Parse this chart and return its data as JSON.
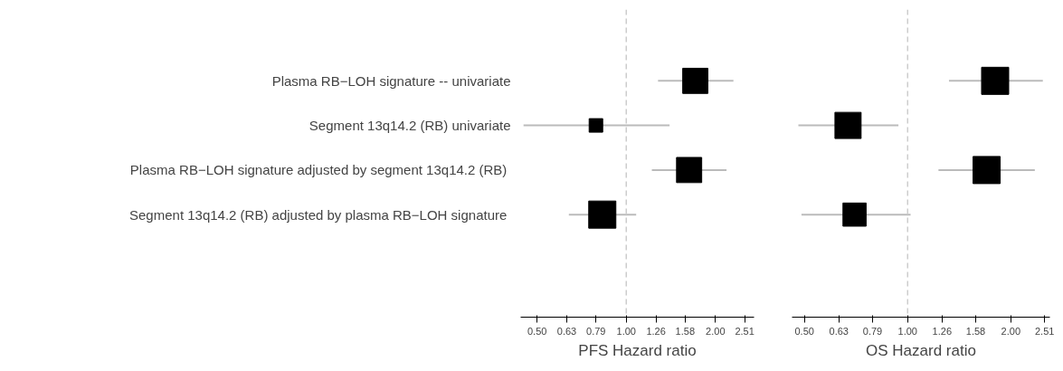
{
  "chart_data": [
    {
      "type": "scatter",
      "orientation": "horizontal",
      "categories": [
        "Plasma RB−LOH signature -- univariate",
        "Segment 13q14.2 (RB) univariate",
        "Plasma RB−LOH  signature adjusted by segment 13q14.2 (RB)",
        "Segment 13q14.2 (RB) adjusted by plasma RB−LOH  signature"
      ],
      "values": [
        1.71,
        0.79,
        1.63,
        0.83
      ],
      "errors": [
        [
          1.28,
          2.3
        ],
        [
          0.45,
          1.4
        ],
        [
          1.22,
          2.18
        ],
        [
          0.64,
          1.08
        ]
      ],
      "sizes": [
        0.86,
        0.25,
        0.86,
        1
      ],
      "color": "#000000",
      "marker": "square",
      "log": "x",
      "xlim": [
        0.44,
        2.7
      ],
      "xticks": [
        {
          "value": 0.5,
          "label": "0.50"
        },
        0.63,
        0.79,
        {
          "value": 1.0,
          "label": "1.00"
        },
        1.26,
        1.58,
        {
          "value": 2.0,
          "label": "2.00"
        },
        2.51
      ],
      "ref_lines": [
        {
          "axis": "x",
          "value": 1,
          "color": "#cccccc",
          "line_style": "dashed"
        }
      ],
      "xlabel": "PFS Hazard ratio",
      "grid": false
    },
    {
      "type": "scatter",
      "orientation": "horizontal",
      "categories": [
        null,
        null,
        null,
        null
      ],
      "values": [
        1.8,
        0.67,
        1.7,
        0.7
      ],
      "errors": [
        [
          1.32,
          2.48
        ],
        [
          0.48,
          0.94
        ],
        [
          1.23,
          2.35
        ],
        [
          0.49,
          1.02
        ]
      ],
      "sizes": [
        1,
        0.93,
        1,
        0.73
      ],
      "color": "#000000",
      "marker": "square",
      "log": "x",
      "tick_labels": "x",
      "xlim": [
        0.46,
        2.6
      ],
      "xticks": [
        {
          "value": 0.5,
          "label": "0.50"
        },
        0.63,
        0.79,
        {
          "value": 1.0,
          "label": "1.00"
        },
        1.26,
        1.58,
        {
          "value": 2.0,
          "label": "2.00"
        },
        2.51
      ],
      "ref_lines": [
        {
          "axis": "x",
          "value": 1,
          "color": "#cccccc",
          "line_style": "dashed"
        }
      ],
      "xlabel": "OS Hazard ratio",
      "grid": false
    }
  ]
}
